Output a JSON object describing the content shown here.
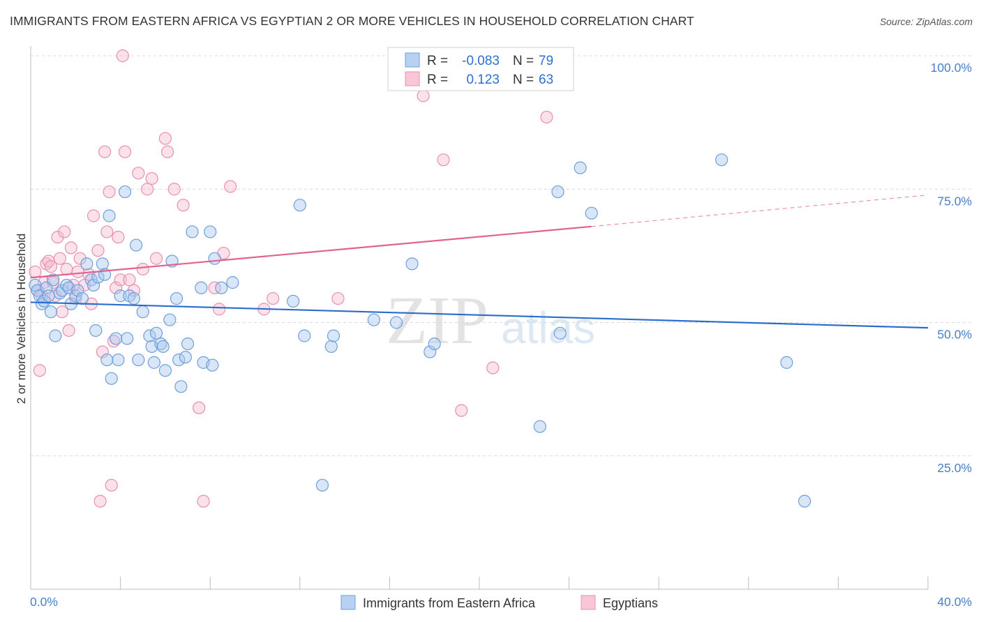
{
  "title": "IMMIGRANTS FROM EASTERN AFRICA VS EGYPTIAN 2 OR MORE VEHICLES IN HOUSEHOLD CORRELATION CHART",
  "source": "Source: ZipAtlas.com",
  "watermark": {
    "zip": "ZIP",
    "atlas": "atlas"
  },
  "colors": {
    "blue_fill": "#a9c8f0",
    "blue_stroke": "#6d9fdc",
    "blue_line": "#2a6ccb",
    "pink_fill": "#f7bccf",
    "pink_stroke": "#e890ad",
    "pink_line": "#e0628f",
    "grid": "#d8d8d8",
    "tick_text": "#4a7fc9"
  },
  "legend": {
    "rows": [
      {
        "r_label": "R =",
        "r_value": "-0.083",
        "n_label": "N =",
        "n_value": "79",
        "series": "blue"
      },
      {
        "r_label": "R =",
        "r_value": "0.123",
        "n_label": "N =",
        "n_value": "63",
        "series": "pink"
      }
    ]
  },
  "chart_data": {
    "type": "scatter",
    "title": "IMMIGRANTS FROM EASTERN AFRICA VS EGYPTIAN 2 OR MORE VEHICLES IN HOUSEHOLD CORRELATION CHART",
    "xlabel": "",
    "ylabel": "2 or more Vehicles in Household",
    "xlim": [
      0,
      40
    ],
    "ylim": [
      0,
      100
    ],
    "x_tick_labels": [
      "0.0%",
      "40.0%"
    ],
    "y_ticks": [
      25,
      50,
      75,
      100
    ],
    "y_tick_labels": [
      "25.0%",
      "50.0%",
      "75.0%",
      "100.0%"
    ],
    "grid": true,
    "series": [
      {
        "name": "Immigrants from Eastern Africa",
        "color": "blue",
        "r": -0.083,
        "n": 79,
        "trend": {
          "x0": 0,
          "y0": 53.8,
          "x1": 40,
          "y1": 49.0
        },
        "points": [
          [
            0.2,
            57
          ],
          [
            0.3,
            56
          ],
          [
            0.4,
            55
          ],
          [
            0.5,
            53.5
          ],
          [
            0.6,
            54
          ],
          [
            0.7,
            56.5
          ],
          [
            0.8,
            55
          ],
          [
            0.9,
            52
          ],
          [
            1.0,
            58
          ],
          [
            1.1,
            47.5
          ],
          [
            1.3,
            55.5
          ],
          [
            1.4,
            56
          ],
          [
            1.6,
            57
          ],
          [
            1.7,
            56.5
          ],
          [
            1.8,
            53.5
          ],
          [
            2.0,
            55
          ],
          [
            2.1,
            56
          ],
          [
            2.3,
            54.5
          ],
          [
            2.5,
            61
          ],
          [
            2.7,
            58
          ],
          [
            2.8,
            57
          ],
          [
            2.9,
            48.5
          ],
          [
            3.0,
            58.5
          ],
          [
            3.2,
            61
          ],
          [
            3.3,
            59
          ],
          [
            3.4,
            43
          ],
          [
            3.5,
            70
          ],
          [
            3.6,
            39.5
          ],
          [
            3.8,
            47
          ],
          [
            3.9,
            43
          ],
          [
            4.0,
            55
          ],
          [
            4.2,
            74.5
          ],
          [
            4.3,
            47
          ],
          [
            4.4,
            55
          ],
          [
            4.6,
            54.5
          ],
          [
            4.7,
            64.5
          ],
          [
            4.8,
            43
          ],
          [
            5.0,
            52
          ],
          [
            5.3,
            47.5
          ],
          [
            5.4,
            45.5
          ],
          [
            5.5,
            42.5
          ],
          [
            5.6,
            48
          ],
          [
            5.8,
            46
          ],
          [
            5.9,
            45.5
          ],
          [
            6.0,
            41
          ],
          [
            6.2,
            50.5
          ],
          [
            6.3,
            61.5
          ],
          [
            6.5,
            54.5
          ],
          [
            6.6,
            43
          ],
          [
            6.7,
            38
          ],
          [
            6.9,
            43.5
          ],
          [
            7.0,
            46
          ],
          [
            7.2,
            67
          ],
          [
            7.6,
            56.5
          ],
          [
            7.7,
            42.5
          ],
          [
            8.0,
            67
          ],
          [
            8.1,
            42
          ],
          [
            8.2,
            62
          ],
          [
            8.5,
            56.5
          ],
          [
            9.0,
            57.5
          ],
          [
            11.7,
            54
          ],
          [
            12.0,
            72
          ],
          [
            12.2,
            47.5
          ],
          [
            13.0,
            19.5
          ],
          [
            13.4,
            45.5
          ],
          [
            13.5,
            47.5
          ],
          [
            15.3,
            50.5
          ],
          [
            16.3,
            50
          ],
          [
            17.0,
            61
          ],
          [
            17.8,
            44.5
          ],
          [
            18.0,
            46
          ],
          [
            22.7,
            30.5
          ],
          [
            23.5,
            74.5
          ],
          [
            23.6,
            48
          ],
          [
            24.5,
            79
          ],
          [
            25.0,
            70.5
          ],
          [
            30.8,
            80.5
          ],
          [
            33.7,
            42.5
          ],
          [
            34.5,
            16.5
          ]
        ]
      },
      {
        "name": "Egyptians",
        "color": "pink",
        "r": 0.123,
        "n": 63,
        "trend": {
          "x0": 0,
          "y0": 58.4,
          "x1": 25,
          "y1": 68.0,
          "x_ext": 40,
          "y_ext": 73.9
        },
        "points": [
          [
            0.2,
            59.5
          ],
          [
            0.3,
            56
          ],
          [
            0.4,
            41
          ],
          [
            0.5,
            55
          ],
          [
            0.6,
            57.5
          ],
          [
            0.7,
            61
          ],
          [
            0.8,
            61.5
          ],
          [
            0.9,
            60.5
          ],
          [
            1.0,
            57.5
          ],
          [
            1.1,
            55
          ],
          [
            1.2,
            66
          ],
          [
            1.3,
            62
          ],
          [
            1.4,
            52
          ],
          [
            1.5,
            67
          ],
          [
            1.6,
            60
          ],
          [
            1.7,
            48.5
          ],
          [
            1.8,
            64
          ],
          [
            1.9,
            57
          ],
          [
            2.0,
            54.5
          ],
          [
            2.1,
            59.5
          ],
          [
            2.2,
            62
          ],
          [
            2.4,
            57
          ],
          [
            2.6,
            59
          ],
          [
            2.7,
            53.5
          ],
          [
            2.8,
            70
          ],
          [
            3.0,
            63.5
          ],
          [
            3.1,
            16.5
          ],
          [
            3.2,
            44.5
          ],
          [
            3.3,
            82
          ],
          [
            3.4,
            67
          ],
          [
            3.5,
            74.5
          ],
          [
            3.6,
            19.5
          ],
          [
            3.7,
            46.5
          ],
          [
            3.8,
            56.5
          ],
          [
            3.9,
            66
          ],
          [
            4.0,
            58
          ],
          [
            4.1,
            100
          ],
          [
            4.2,
            82
          ],
          [
            4.4,
            58
          ],
          [
            4.6,
            56
          ],
          [
            4.8,
            78
          ],
          [
            5.0,
            60
          ],
          [
            5.2,
            75
          ],
          [
            5.4,
            77
          ],
          [
            5.6,
            62
          ],
          [
            6.0,
            84.5
          ],
          [
            6.1,
            82
          ],
          [
            6.4,
            75
          ],
          [
            6.8,
            72
          ],
          [
            7.5,
            34
          ],
          [
            7.7,
            16.5
          ],
          [
            8.2,
            56.5
          ],
          [
            8.4,
            52.5
          ],
          [
            8.6,
            63
          ],
          [
            8.9,
            75.5
          ],
          [
            10.4,
            52.5
          ],
          [
            10.8,
            54.5
          ],
          [
            13.7,
            54.5
          ],
          [
            17.5,
            92.5
          ],
          [
            18.4,
            80.5
          ],
          [
            19.2,
            33.5
          ],
          [
            20.6,
            41.5
          ],
          [
            23.0,
            88.5
          ]
        ]
      }
    ]
  },
  "bottom_legend": [
    {
      "label": "Immigrants from Eastern Africa",
      "series": "blue"
    },
    {
      "label": "Egyptians",
      "series": "pink"
    }
  ]
}
